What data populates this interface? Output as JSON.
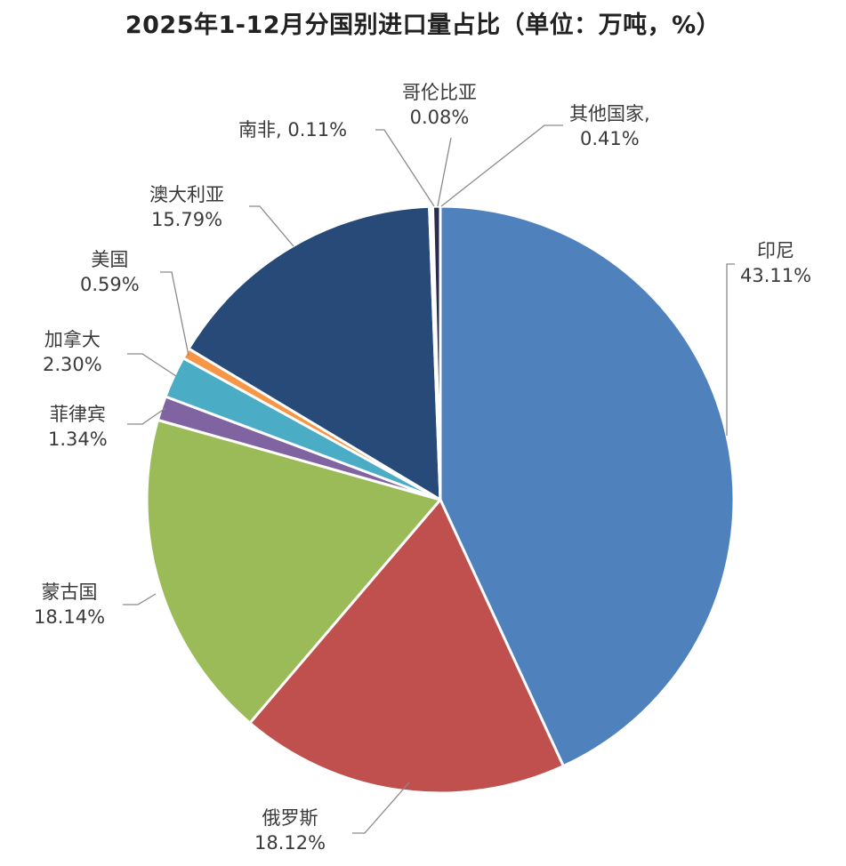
{
  "title": "2025年1-12月分国别进口量占比（单位：万吨，%）",
  "chart_data": {
    "type": "pie",
    "title": "2025年1-12月分国别进口量占比（单位：万吨，%）",
    "unit": "万吨, %",
    "start_angle": "12 o'clock",
    "direction": "clockwise",
    "categories": [
      "印尼",
      "俄罗斯",
      "蒙古国",
      "菲律宾",
      "加拿大",
      "美国",
      "澳大利亚",
      "南非",
      "哥伦比亚",
      "其他国家"
    ],
    "values": [
      43.11,
      18.12,
      18.14,
      1.34,
      2.3,
      0.59,
      15.79,
      0.11,
      0.08,
      0.41
    ],
    "colors": [
      "#4f81bd",
      "#c0504d",
      "#9bbb59",
      "#8064a2",
      "#4bacc6",
      "#f79646",
      "#274a78",
      "#5a8fd0",
      "#a6c3e8",
      "#2b2b4a"
    ],
    "labels": [
      {
        "name": "印尼",
        "value": "43.11%"
      },
      {
        "name": "俄罗斯",
        "value": "18.12%"
      },
      {
        "name": "蒙古国",
        "value": "18.14%"
      },
      {
        "name": "菲律宾",
        "value": "1.34%"
      },
      {
        "name": "加拿大",
        "value": "2.30%"
      },
      {
        "name": "美国",
        "value": "0.59%"
      },
      {
        "name": "澳大利亚",
        "value": "15.79%"
      },
      {
        "name": "南非",
        "value": "0.11%"
      },
      {
        "name": "哥伦比亚",
        "value": "0.08%"
      },
      {
        "name": "其他国家",
        "value": "0.41%"
      }
    ],
    "legend": "none (data labels with leader lines)"
  }
}
